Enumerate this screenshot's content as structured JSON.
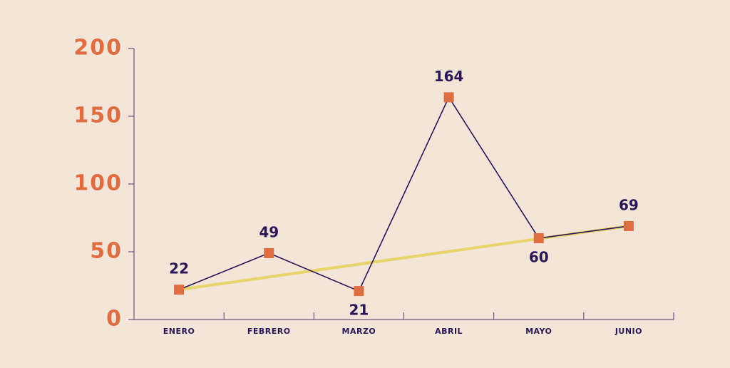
{
  "chart_data": {
    "type": "line",
    "categories": [
      "ENERO",
      "FEBRERO",
      "MARZO",
      "ABRIL",
      "MAYO",
      "JUNIO"
    ],
    "series": [
      {
        "color": "#2b1656",
        "marker_color": "#df6d42",
        "values": [
          22,
          49,
          21,
          164,
          60,
          69
        ]
      },
      {
        "color": "#e9d36b",
        "values": [
          22,
          31.4,
          40.8,
          50.2,
          59.6,
          69
        ]
      }
    ],
    "ylim": [
      0,
      200
    ],
    "yticks": [
      0,
      50,
      100,
      150,
      200
    ],
    "tick_color": "#df6d42"
  }
}
